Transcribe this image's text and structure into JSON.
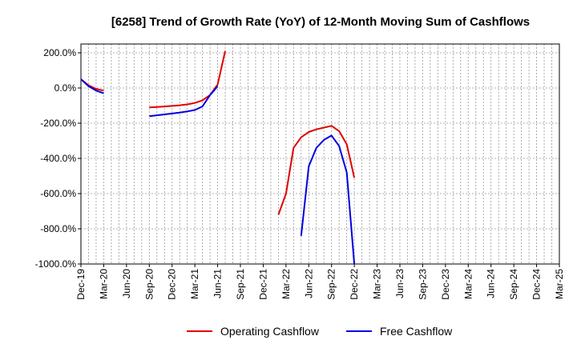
{
  "chart_data": {
    "type": "line",
    "title": "[6258]  Trend of Growth Rate (YoY) of 12-Month Moving Sum of Cashflows",
    "xlabel": "",
    "ylabel": "",
    "ylim": [
      -1000,
      250
    ],
    "yticks": [
      200,
      0,
      -200,
      -400,
      -600,
      -800,
      -1000
    ],
    "ytick_labels": [
      "200.0%",
      "0.0%",
      "-200.0%",
      "-400.0%",
      "-600.0%",
      "-800.0%",
      "-1000.0%"
    ],
    "x_range": [
      "2019-12",
      "2025-03"
    ],
    "xtick_labels": [
      "Dec-19",
      "Mar-20",
      "Jun-20",
      "Sep-20",
      "Dec-20",
      "Mar-21",
      "Jun-21",
      "Sep-21",
      "Dec-21",
      "Mar-22",
      "Jun-22",
      "Sep-22",
      "Dec-22",
      "Mar-23",
      "Jun-23",
      "Sep-23",
      "Dec-23",
      "Mar-24",
      "Jun-24",
      "Sep-24",
      "Dec-24",
      "Mar-25"
    ],
    "grid": true,
    "legend_position": "bottom-center",
    "series": [
      {
        "name": "Operating Cashflow",
        "color": "#e00000",
        "points": [
          [
            "2019-12",
            50
          ],
          [
            "2020-01",
            15
          ],
          [
            "2020-02",
            -5
          ],
          [
            "2020-03",
            -15
          ],
          [
            "2020-09",
            -110
          ],
          [
            "2020-10",
            -108
          ],
          [
            "2020-11",
            -105
          ],
          [
            "2020-12",
            -102
          ],
          [
            "2021-01",
            -98
          ],
          [
            "2021-02",
            -93
          ],
          [
            "2021-03",
            -85
          ],
          [
            "2021-04",
            -70
          ],
          [
            "2021-05",
            -40
          ],
          [
            "2021-06",
            20
          ],
          [
            "2021-07",
            210
          ],
          [
            "2022-02",
            -720
          ],
          [
            "2022-03",
            -600
          ],
          [
            "2022-04",
            -340
          ],
          [
            "2022-05",
            -280
          ],
          [
            "2022-06",
            -250
          ],
          [
            "2022-07",
            -235
          ],
          [
            "2022-08",
            -225
          ],
          [
            "2022-09",
            -215
          ],
          [
            "2022-10",
            -245
          ],
          [
            "2022-11",
            -320
          ],
          [
            "2022-12",
            -510
          ]
        ]
      },
      {
        "name": "Free Cashflow",
        "color": "#0000e0",
        "points": [
          [
            "2019-12",
            50
          ],
          [
            "2020-01",
            10
          ],
          [
            "2020-02",
            -15
          ],
          [
            "2020-03",
            -30
          ],
          [
            "2020-09",
            -160
          ],
          [
            "2020-10",
            -155
          ],
          [
            "2020-11",
            -150
          ],
          [
            "2020-12",
            -145
          ],
          [
            "2021-01",
            -140
          ],
          [
            "2021-02",
            -133
          ],
          [
            "2021-03",
            -125
          ],
          [
            "2021-04",
            -105
          ],
          [
            "2021-05",
            -40
          ],
          [
            "2021-06",
            10
          ],
          [
            "2022-05",
            -840
          ],
          [
            "2022-06",
            -445
          ],
          [
            "2022-07",
            -340
          ],
          [
            "2022-08",
            -295
          ],
          [
            "2022-09",
            -270
          ],
          [
            "2022-10",
            -330
          ],
          [
            "2022-11",
            -480
          ],
          [
            "2022-12",
            -1000
          ]
        ]
      }
    ]
  }
}
